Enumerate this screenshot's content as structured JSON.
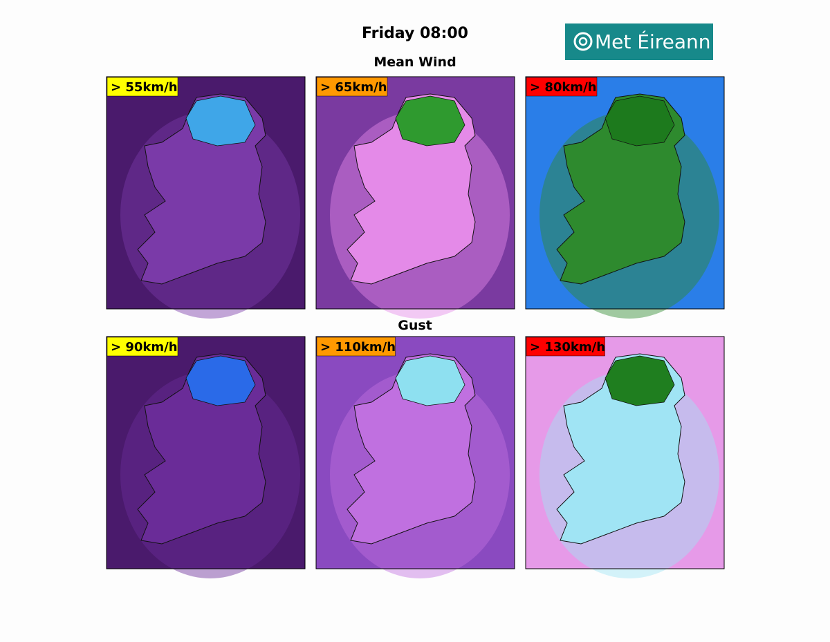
{
  "header": {
    "title": "Friday 08:00",
    "logo": "Met Éireann"
  },
  "sections": [
    {
      "title": "Mean Wind",
      "panels": [
        {
          "label": "> 55km/h",
          "color": "#ffff00"
        },
        {
          "label": "> 65km/h",
          "color": "#ff9900"
        },
        {
          "label": "> 80km/h",
          "color": "#ff0000"
        }
      ]
    },
    {
      "title": "Gust",
      "panels": [
        {
          "label": "> 90km/h",
          "color": "#ffff00"
        },
        {
          "label": "> 110km/h",
          "color": "#ff9900"
        },
        {
          "label": "> 130km/h",
          "color": "#ff0000"
        }
      ]
    }
  ]
}
